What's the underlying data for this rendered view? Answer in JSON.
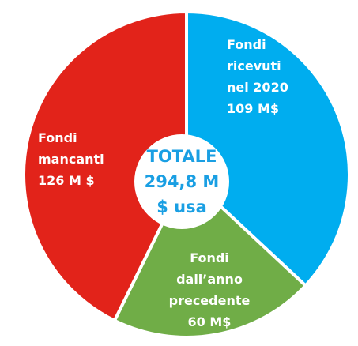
{
  "chart_data": {
    "type": "pie",
    "categories": [
      [
        "Fondi",
        "ricevuti",
        "nel 2020"
      ],
      [
        "Fondi",
        "dall’anno",
        "precedente"
      ],
      [
        "Fondi",
        "mancanti"
      ]
    ],
    "values": [
      109,
      60,
      126
    ],
    "value_labels": [
      "109 M$",
      "60 M$",
      "126 M $"
    ],
    "colors": [
      "#00adef",
      "#70ad47",
      "#e2231a"
    ],
    "center_text": [
      "TOTALE",
      "294,8 M",
      "$ usa"
    ]
  }
}
